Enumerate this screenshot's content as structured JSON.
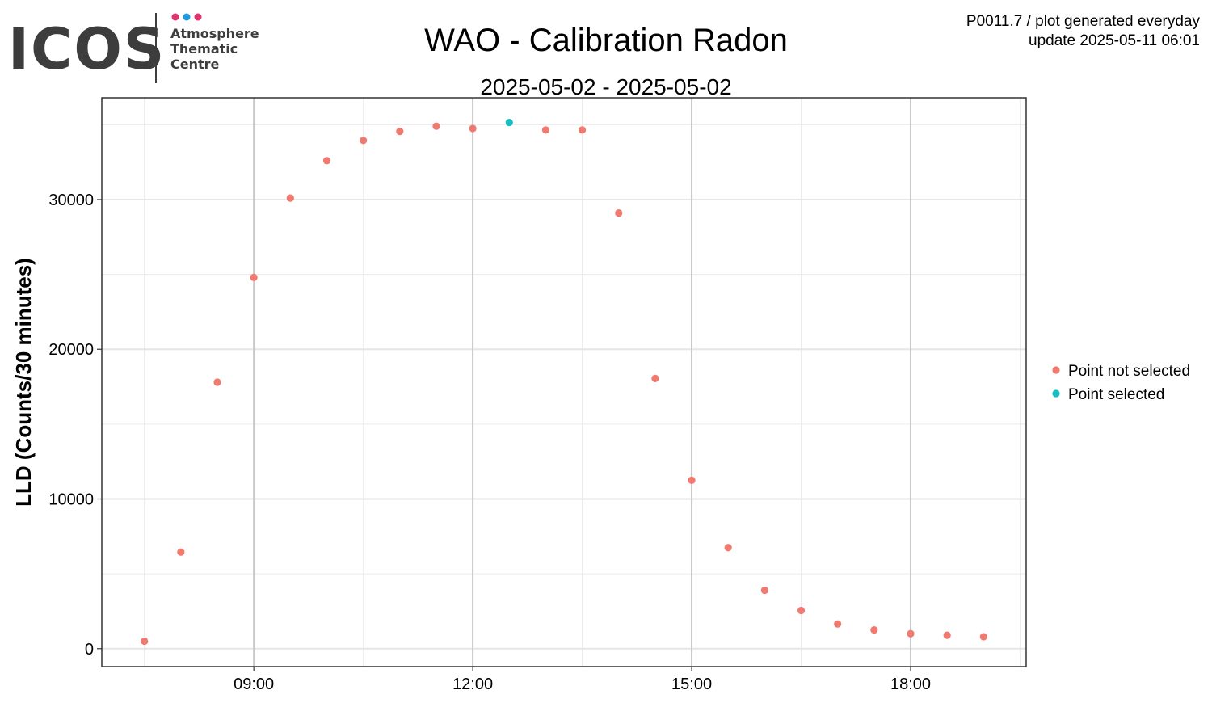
{
  "logo": {
    "wordmark": "ICOS",
    "line1": "Atmosphere",
    "line2": "Thematic",
    "line3": "Centre",
    "dot_colors": [
      "#e0336f",
      "#1e9be0",
      "#e0336f"
    ]
  },
  "meta": {
    "line1": "P0011.7 / plot generated everyday",
    "line2": "update  2025-05-11 06:01"
  },
  "chart_data": {
    "type": "scatter",
    "title": "WAO - Calibration Radon",
    "subtitle": "2025-05-02 - 2025-05-02",
    "xlabel": "",
    "ylabel": "LLD (Counts/30 minutes)",
    "x_tick_labels": [
      "09:00",
      "12:00",
      "15:00",
      "18:00"
    ],
    "y_ticks": [
      0,
      10000,
      20000,
      30000
    ],
    "y_range": [
      -1200,
      36800
    ],
    "x_range": [
      "06:55",
      "19:35"
    ],
    "grid": true,
    "legend_position": "right",
    "series": [
      {
        "name": "Point not selected",
        "color": "#f07a70",
        "points": [
          {
            "x": "07:30",
            "y": 500
          },
          {
            "x": "08:00",
            "y": 6450
          },
          {
            "x": "08:30",
            "y": 17800
          },
          {
            "x": "09:00",
            "y": 24800
          },
          {
            "x": "09:30",
            "y": 30100
          },
          {
            "x": "10:00",
            "y": 32600
          },
          {
            "x": "10:30",
            "y": 33950
          },
          {
            "x": "11:00",
            "y": 34550
          },
          {
            "x": "11:30",
            "y": 34900
          },
          {
            "x": "12:00",
            "y": 34750
          },
          {
            "x": "13:00",
            "y": 34650
          },
          {
            "x": "13:30",
            "y": 34650
          },
          {
            "x": "14:00",
            "y": 29100
          },
          {
            "x": "14:30",
            "y": 18050
          },
          {
            "x": "15:00",
            "y": 11250
          },
          {
            "x": "15:30",
            "y": 6750
          },
          {
            "x": "16:00",
            "y": 3900
          },
          {
            "x": "16:30",
            "y": 2550
          },
          {
            "x": "17:00",
            "y": 1650
          },
          {
            "x": "17:30",
            "y": 1250
          },
          {
            "x": "18:00",
            "y": 1000
          },
          {
            "x": "18:30",
            "y": 900
          },
          {
            "x": "19:00",
            "y": 800
          }
        ]
      },
      {
        "name": "Point selected",
        "color": "#17bec2",
        "points": [
          {
            "x": "12:30",
            "y": 35150
          }
        ]
      }
    ]
  }
}
